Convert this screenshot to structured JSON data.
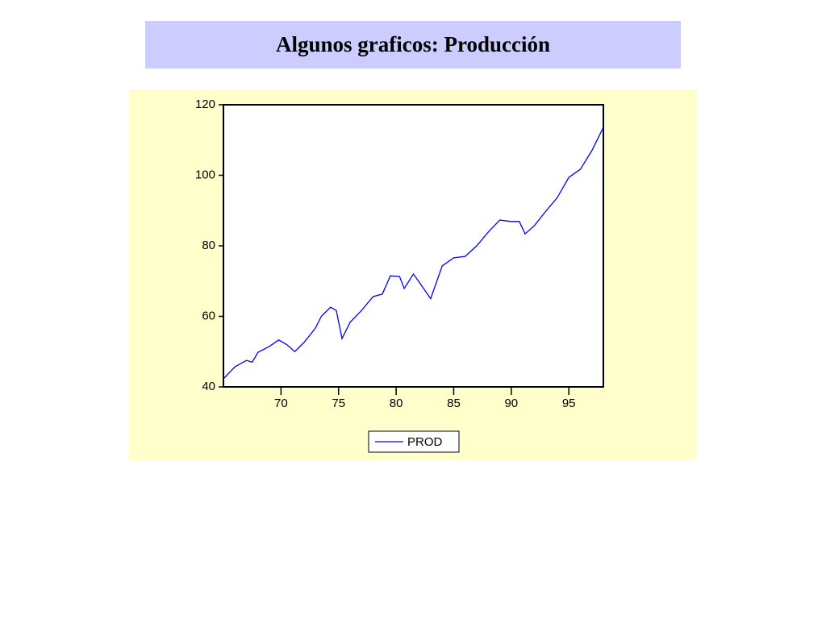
{
  "chart_data": {
    "type": "line",
    "title": "Algunos graficos: Producción",
    "xlim": [
      65,
      98
    ],
    "xticks": [
      70,
      75,
      80,
      85,
      90,
      95
    ],
    "ylim": [
      40,
      120
    ],
    "yticks": [
      40,
      60,
      80,
      100,
      120
    ],
    "series": [
      {
        "name": "PROD",
        "color": "#0000ff",
        "x": [
          65,
          66,
          67,
          67.5,
          68,
          69,
          69.8,
          70.5,
          71.2,
          72,
          73,
          73.5,
          74.3,
          74.8,
          75.3,
          76,
          77,
          78,
          78.8,
          79.5,
          80.3,
          80.7,
          81.5,
          82,
          83,
          84,
          85,
          86,
          87,
          88,
          89,
          90,
          90.7,
          91.2,
          92,
          93,
          94,
          95,
          96,
          97,
          98
        ],
        "values": [
          42.3,
          45.7,
          47.5,
          47,
          49.8,
          51.5,
          53.3,
          52,
          50,
          52.6,
          56.7,
          60,
          62.6,
          61.7,
          53.7,
          58.3,
          61.7,
          65.6,
          66.3,
          71.5,
          71.3,
          67.9,
          72,
          69.7,
          65,
          74.3,
          76.6,
          77,
          80,
          83.9,
          87.3,
          86.9,
          86.9,
          83.4,
          85.7,
          89.8,
          93.7,
          99.4,
          101.7,
          107,
          113.6
        ]
      }
    ]
  }
}
